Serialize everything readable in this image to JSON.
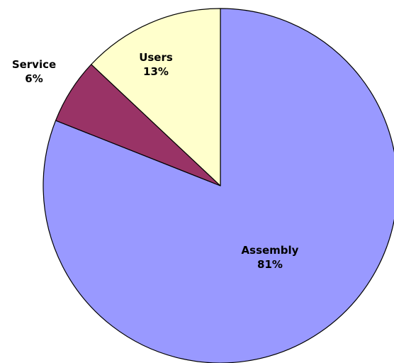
{
  "chart_data": {
    "type": "pie",
    "title": "",
    "start_angle_deg": 0,
    "direction": "clockwise",
    "slices": [
      {
        "label": "Assembly",
        "value": 81,
        "value_label": "81%",
        "color": "#9999ff"
      },
      {
        "label": "Service",
        "value": 6,
        "value_label": "6%",
        "color": "#993366"
      },
      {
        "label": "Users",
        "value": 13,
        "value_label": "13%",
        "color": "#ffffcc"
      }
    ]
  }
}
